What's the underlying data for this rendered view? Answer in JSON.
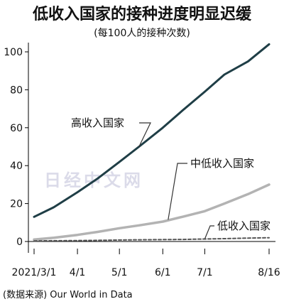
{
  "title": "低收入国家的接种进度明显迟缓",
  "subtitle": "(每100人的接种次数)",
  "source": "(数据来源)  Our World in Data",
  "watermark": "日经中文网",
  "colors": {
    "high": "#1f3e46",
    "middle": "#b3b3b3",
    "low": "#555555",
    "axis": "#000000",
    "grid": "#d6d6d6"
  },
  "chart_data": {
    "type": "line",
    "title": "低收入国家的接种进度明显迟缓",
    "subtitle": "(每100人的接种次数)",
    "x_ticks": [
      "2021/3/1",
      "4/1",
      "5/1",
      "6/1",
      "7/1",
      "8/16"
    ],
    "x": [
      "2021-03-01",
      "2021-03-15",
      "2021-04-01",
      "2021-04-15",
      "2021-05-01",
      "2021-05-15",
      "2021-06-01",
      "2021-06-15",
      "2021-07-01",
      "2021-07-15",
      "2021-08-01",
      "2021-08-16"
    ],
    "ylim": [
      0,
      100
    ],
    "y_ticks": [
      0,
      20,
      40,
      60,
      80,
      100
    ],
    "grid": false,
    "series": [
      {
        "name": "高收入国家",
        "style": "solid",
        "values": [
          13,
          18,
          26,
          33,
          42,
          50,
          60,
          69,
          79,
          88,
          95,
          104
        ]
      },
      {
        "name": "中低收入国家",
        "style": "solid",
        "values": [
          1,
          2,
          3.5,
          5,
          7,
          8.5,
          10.5,
          13,
          16,
          20,
          25,
          30
        ]
      },
      {
        "name": "低收入国家",
        "style": "dashed",
        "values": [
          0.3,
          0.4,
          0.5,
          0.6,
          0.8,
          0.9,
          1.0,
          1.1,
          1.3,
          1.5,
          1.8,
          2.0
        ]
      }
    ]
  }
}
